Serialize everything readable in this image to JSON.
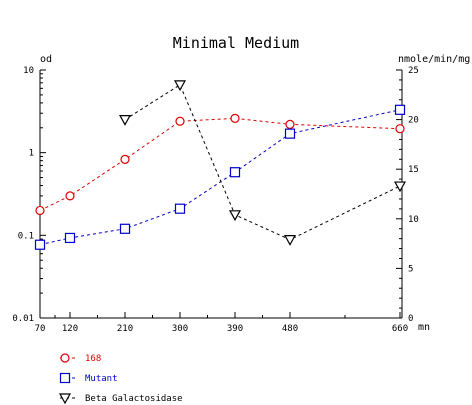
{
  "chart_data": {
    "type": "line",
    "title": "Minimal Medium",
    "xlabel": "mn",
    "ylabel_left": "od",
    "ylabel_right": "nmole/min/mg",
    "x": [
      70,
      120,
      210,
      300,
      390,
      480,
      660
    ],
    "x_ticks": [
      "70",
      "120",
      "210",
      "300",
      "390",
      "480",
      "660"
    ],
    "y_left_scale": "log",
    "y_left_range": [
      0.01,
      10
    ],
    "y_left_ticks": [
      "10",
      "1",
      "0.1",
      "0.01"
    ],
    "y_right_range": [
      0,
      25
    ],
    "y_right_ticks": [
      "25",
      "20",
      "15",
      "10",
      "5",
      "0"
    ],
    "grid": false,
    "legend_position": "bottom-left",
    "series": [
      {
        "name": "168",
        "axis": "left",
        "marker": "circle",
        "color": "#dd0000",
        "x": [
          70,
          120,
          210,
          300,
          390,
          480,
          660
        ],
        "values": [
          0.2,
          0.3,
          0.83,
          2.4,
          2.6,
          2.2,
          1.95
        ]
      },
      {
        "name": "Mutant",
        "axis": "left",
        "marker": "square",
        "color": "#0000cc",
        "x": [
          70,
          120,
          210,
          300,
          390,
          480,
          660
        ],
        "values": [
          0.077,
          0.093,
          0.12,
          0.21,
          0.58,
          1.7,
          3.3
        ]
      },
      {
        "name": "Beta Galactosidase",
        "axis": "right",
        "marker": "triangle-down",
        "color": "#000000",
        "x": [
          210,
          300,
          390,
          480,
          660
        ],
        "values": [
          20,
          23.5,
          10.4,
          7.9,
          13.3
        ]
      }
    ]
  }
}
